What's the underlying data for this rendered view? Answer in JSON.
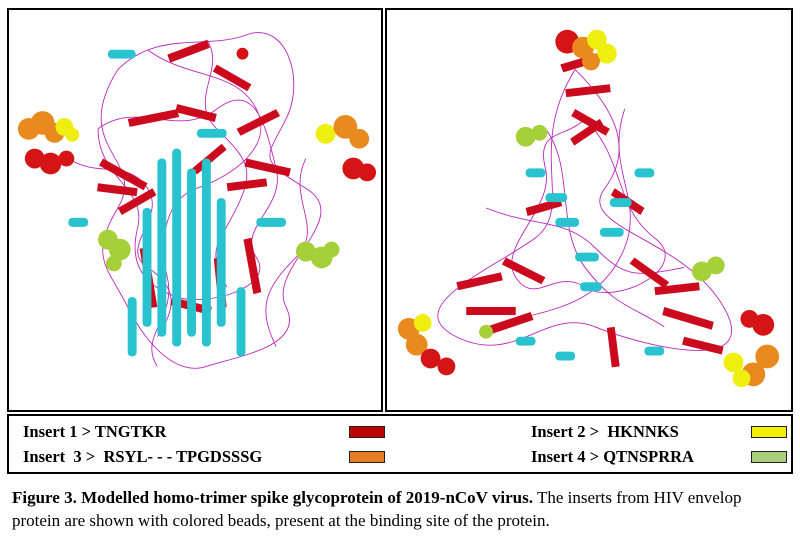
{
  "figure": {
    "panels": [
      {
        "name": "side view of spike trimer"
      },
      {
        "name": "top view of spike trimer"
      }
    ],
    "legend": {
      "items": [
        {
          "label": "Insert 1 > TNGTKR",
          "color": "#c00000"
        },
        {
          "label": "Insert 2 >  HKNNKS",
          "color": "#f2f200"
        },
        {
          "label": "Insert  3 >  RSYL- - - TPGDSSSG",
          "color": "#e87c22"
        },
        {
          "label": "Insert 4 > QTNSPRRA",
          "color": "#a9cf7b"
        }
      ]
    },
    "caption": {
      "title": "Figure 3. Modelled homo-trimer spike glycoprotein of 2019-nCoV virus.",
      "text": " The inserts from HIV envelop protein are shown with colored beads, present at the binding site of the protein."
    }
  },
  "colors": {
    "helix": "#29c3cf",
    "strand": "#cc0a1e",
    "loop": "#b000b0",
    "insert_red": "#d51515",
    "insert_orange": "#e98a1f",
    "insert_yellow": "#eeee10",
    "insert_green": "#a6d03a"
  }
}
